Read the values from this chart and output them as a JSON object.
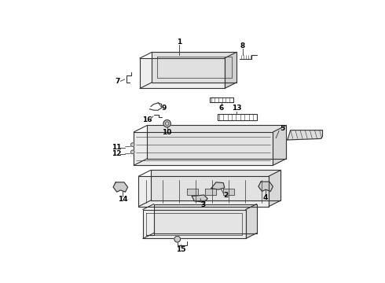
{
  "background_color": "#ffffff",
  "line_color": "#333333",
  "text_color": "#000000",
  "fig_width": 4.9,
  "fig_height": 3.6,
  "dpi": 100,
  "lw": 0.8,
  "label_fontsize": 6.5
}
